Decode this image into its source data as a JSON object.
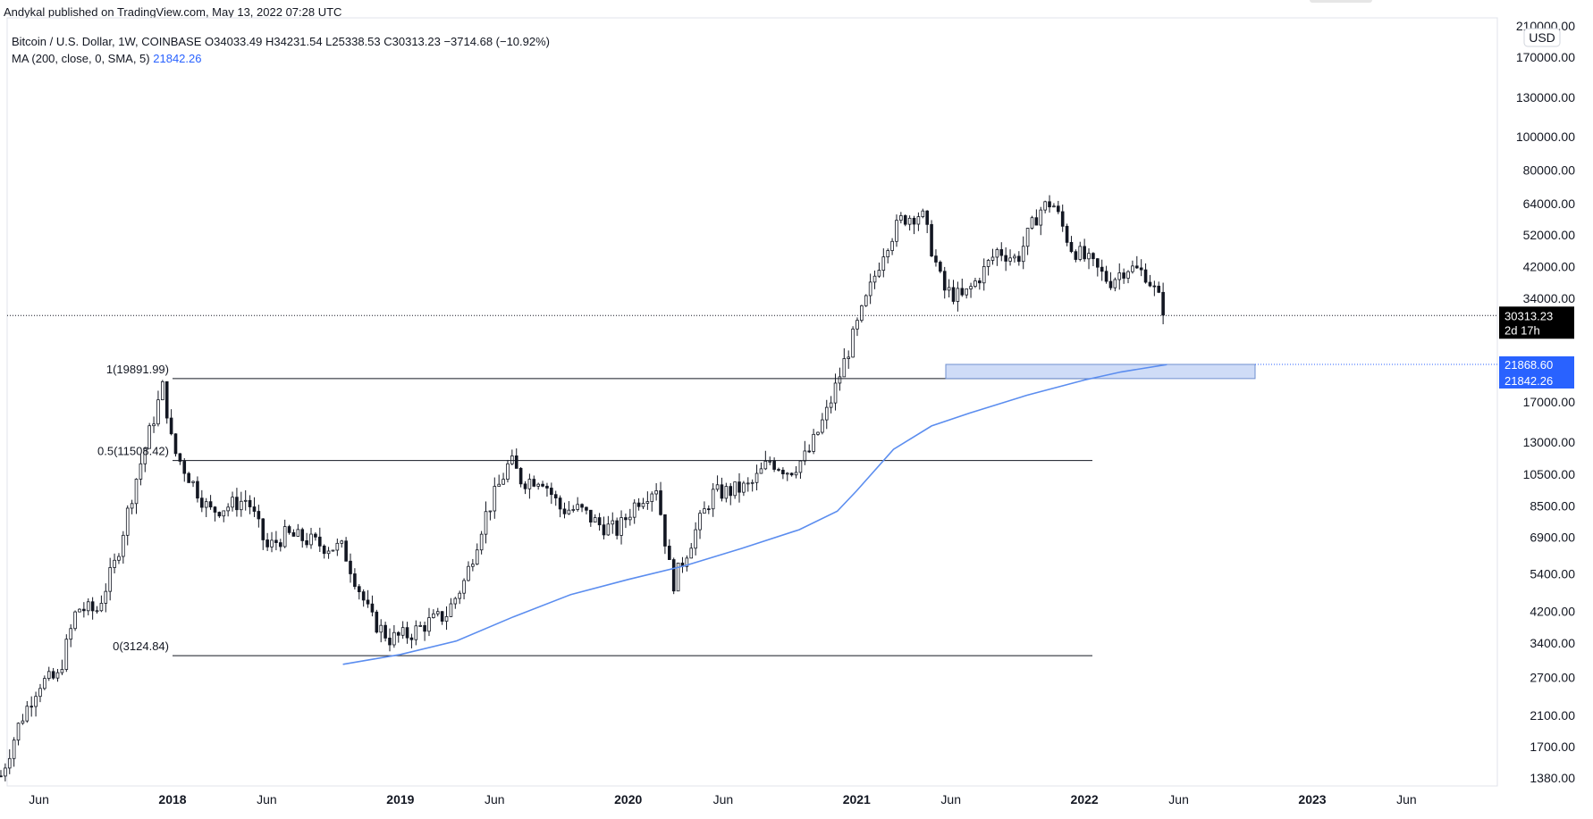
{
  "publisher": "Andykal published on TradingView.com, May 13, 2022 07:28 UTC",
  "legend": {
    "symbol_line": "Bitcoin / U.S. Dollar, 1W, COINBASE  O34033.49  H34231.54  L25338.53  C30313.23  −3714.68 (−10.92%)",
    "ma_label": "MA (200, close, 0, SMA, 5)",
    "ma_value": "21842.26"
  },
  "colors": {
    "candle": "#131722",
    "ma_line": "#5b8def",
    "zone_fill": "#cfdcf7",
    "zone_stroke": "#6f8fcf",
    "last_price_tag": "#000000",
    "blue_tag": "#2962ff"
  },
  "price_axis": {
    "currency": "USD",
    "scale": "log",
    "ticks": [
      "210000.00",
      "170000.00",
      "130000.00",
      "100000.00",
      "80000.00",
      "64000.00",
      "52000.00",
      "42000.00",
      "34000.00",
      "17000.00",
      "13000.00",
      "10500.00",
      "8500.00",
      "6900.00",
      "5400.00",
      "4200.00",
      "3400.00",
      "2700.00",
      "2100.00",
      "1700.00",
      "1380.00"
    ],
    "last_price": "30313.23",
    "countdown": "2d 17h",
    "zone_top": "21868.60",
    "ma_tag": "21842.26"
  },
  "time_axis": {
    "labels": [
      "Jun",
      "2018",
      "Jun",
      "2019",
      "Jun",
      "2020",
      "Jun",
      "2021",
      "Jun",
      "2022",
      "Jun",
      "2023",
      "Jun"
    ],
    "bold": [
      false,
      true,
      false,
      true,
      false,
      true,
      false,
      true,
      false,
      true,
      false,
      true,
      false
    ]
  },
  "fib_levels": [
    {
      "label": "1(19891.99)",
      "value": 19891.99
    },
    {
      "label": "0.5(11508.42)",
      "value": 11508.42
    },
    {
      "label": "0(3124.84)",
      "value": 3124.84
    }
  ],
  "chart_data": {
    "type": "line",
    "title": "Bitcoin / U.S. Dollar, 1W, COINBASE",
    "yscale": "log",
    "ylim": [
      1350,
      215000
    ],
    "x_range": [
      "2017-04-01",
      "2023-09-01"
    ],
    "series": [
      {
        "name": "MA (200, close, 0, SMA, 5)",
        "x": [
          "2018-10-01",
          "2019-01-01",
          "2019-04-01",
          "2019-07-01",
          "2019-10-01",
          "2020-01-01",
          "2020-04-01",
          "2020-07-01",
          "2020-10-01",
          "2020-12-01",
          "2021-01-01",
          "2021-03-01",
          "2021-05-01",
          "2021-07-01",
          "2021-10-01",
          "2022-01-01",
          "2022-03-01",
          "2022-05-13"
        ],
        "values": [
          2950,
          3150,
          3450,
          4050,
          4700,
          5200,
          5700,
          6400,
          7250,
          8200,
          9400,
          12400,
          14500,
          15800,
          17800,
          19700,
          20800,
          21842.26
        ]
      }
    ],
    "candles_close_path": {
      "x": [
        "2017-04-01",
        "2017-05-01",
        "2017-06-01",
        "2017-07-01",
        "2017-08-01",
        "2017-09-01",
        "2017-10-01",
        "2017-11-01",
        "2017-12-17",
        "2018-01-01",
        "2018-02-01",
        "2018-03-01",
        "2018-04-01",
        "2018-05-01",
        "2018-06-01",
        "2018-07-01",
        "2018-08-01",
        "2018-09-01",
        "2018-10-01",
        "2018-11-15",
        "2018-12-15",
        "2019-01-15",
        "2019-02-15",
        "2019-03-15",
        "2019-04-15",
        "2019-05-15",
        "2019-06-26",
        "2019-07-15",
        "2019-08-15",
        "2019-09-15",
        "2019-10-15",
        "2019-11-15",
        "2019-12-15",
        "2020-01-15",
        "2020-02-15",
        "2020-03-12",
        "2020-04-15",
        "2020-05-15",
        "2020-06-15",
        "2020-07-15",
        "2020-08-15",
        "2020-09-15",
        "2020-10-15",
        "2020-11-15",
        "2020-12-15",
        "2021-01-15",
        "2021-02-15",
        "2021-03-15",
        "2021-04-15",
        "2021-05-20",
        "2021-06-20",
        "2021-07-20",
        "2021-08-15",
        "2021-09-15",
        "2021-10-20",
        "2021-11-10",
        "2021-12-10",
        "2022-01-10",
        "2022-02-10",
        "2022-03-10",
        "2022-04-10",
        "2022-05-13"
      ],
      "values": [
        1400,
        2000,
        2600,
        2700,
        4300,
        4200,
        5800,
        9800,
        19000,
        12500,
        10000,
        8200,
        8500,
        8900,
        6400,
        7000,
        6800,
        6500,
        6400,
        4000,
        3500,
        3600,
        3900,
        4100,
        5200,
        7800,
        11500,
        10000,
        10300,
        8300,
        8300,
        7500,
        7200,
        8800,
        9700,
        5000,
        7000,
        9200,
        9400,
        9700,
        11500,
        10700,
        12000,
        16000,
        23000,
        33000,
        48000,
        58000,
        60000,
        36000,
        34000,
        40000,
        47000,
        44000,
        61000,
        65000,
        48000,
        43000,
        38000,
        42000,
        40000,
        30313.23
      ]
    }
  }
}
